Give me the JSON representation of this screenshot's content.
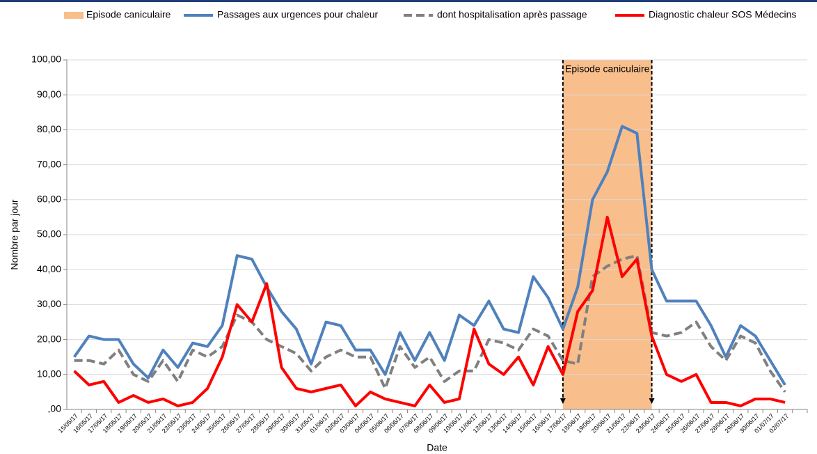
{
  "chart_data": {
    "type": "line",
    "y_label": "Nombre par jour",
    "x_label": "Date",
    "categories": [
      "15/05/17",
      "16/05/17",
      "17/05/17",
      "18/05/17",
      "19/05/17",
      "20/05/17",
      "21/05/17",
      "22/05/17",
      "23/05/17",
      "24/05/17",
      "25/05/17",
      "26/05/17",
      "27/05/17",
      "28/05/17",
      "29/05/17",
      "30/05/17",
      "31/05/17",
      "01/06/17",
      "02/06/17",
      "03/06/17",
      "04/06/17",
      "05/06/17",
      "06/06/17",
      "07/06/17",
      "08/06/17",
      "09/06/17",
      "10/06/17",
      "11/06/17",
      "12/06/17",
      "13/06/17",
      "14/06/17",
      "15/06/17",
      "16/06/17",
      "17/06/17",
      "18/06/17",
      "19/06/17",
      "20/06/17",
      "21/06/17",
      "22/06/17",
      "23/06/17",
      "24/06/17",
      "25/06/17",
      "26/06/17",
      "27/06/17",
      "28/06/17",
      "29/06/17",
      "30/06/17",
      "01/07/17",
      "02/07/17",
      null
    ],
    "episode": {
      "name": "Episode caniculaire",
      "start": "17/06/17",
      "end": "23/06/17",
      "color": "#f8be8c"
    },
    "series": [
      {
        "name": "Passages aux urgences pour chaleur",
        "color": "#4f81bd",
        "style": "solid",
        "values": [
          15,
          21,
          20,
          20,
          13,
          9,
          17,
          12,
          19,
          18,
          24,
          44,
          43,
          35,
          28,
          23,
          13,
          25,
          24,
          17,
          17,
          10,
          22,
          14,
          22,
          14,
          27,
          24,
          31,
          23,
          22,
          38,
          32,
          23,
          35,
          60,
          68,
          81,
          79,
          40,
          31,
          31,
          31,
          24,
          15,
          24,
          21,
          14,
          7,
          null
        ]
      },
      {
        "name": "dont hospitalisation après passage",
        "color": "#808080",
        "style": "dashed",
        "values": [
          14,
          14,
          13,
          17,
          10,
          8,
          14,
          8,
          17,
          15,
          18,
          27,
          25,
          20,
          18,
          16,
          11,
          15,
          17,
          15,
          15,
          6,
          18,
          12,
          15,
          8,
          11,
          11,
          20,
          19,
          17,
          23,
          21,
          14,
          13,
          38,
          41,
          43,
          44,
          22,
          21,
          22,
          25,
          18,
          14,
          21,
          19,
          11,
          5,
          null
        ]
      },
      {
        "name": "Diagnostic chaleur SOS Médecins",
        "color": "#ff0000",
        "style": "solid",
        "values": [
          11,
          7,
          8,
          2,
          4,
          2,
          3,
          1,
          2,
          6,
          15,
          30,
          25,
          36,
          12,
          6,
          5,
          6,
          7,
          1,
          5,
          3,
          2,
          1,
          7,
          2,
          3,
          23,
          13,
          10,
          15,
          7,
          18,
          10,
          28,
          34,
          55,
          38,
          43,
          21,
          10,
          8,
          10,
          2,
          2,
          1,
          3,
          3,
          2,
          null
        ]
      }
    ],
    "ylim": [
      0,
      100
    ],
    "yticks": [
      {
        "value": 0,
        "label": ",00"
      },
      {
        "value": 10,
        "label": "10,00"
      },
      {
        "value": 20,
        "label": "20,00"
      },
      {
        "value": 30,
        "label": "30,00"
      },
      {
        "value": 40,
        "label": "40,00"
      },
      {
        "value": 50,
        "label": "50,00"
      },
      {
        "value": 60,
        "label": "60,00"
      },
      {
        "value": 70,
        "label": "70,00"
      },
      {
        "value": 80,
        "label": "80,00"
      },
      {
        "value": 90,
        "label": "90,00"
      },
      {
        "value": 100,
        "label": "100,00"
      }
    ],
    "grid": true
  }
}
